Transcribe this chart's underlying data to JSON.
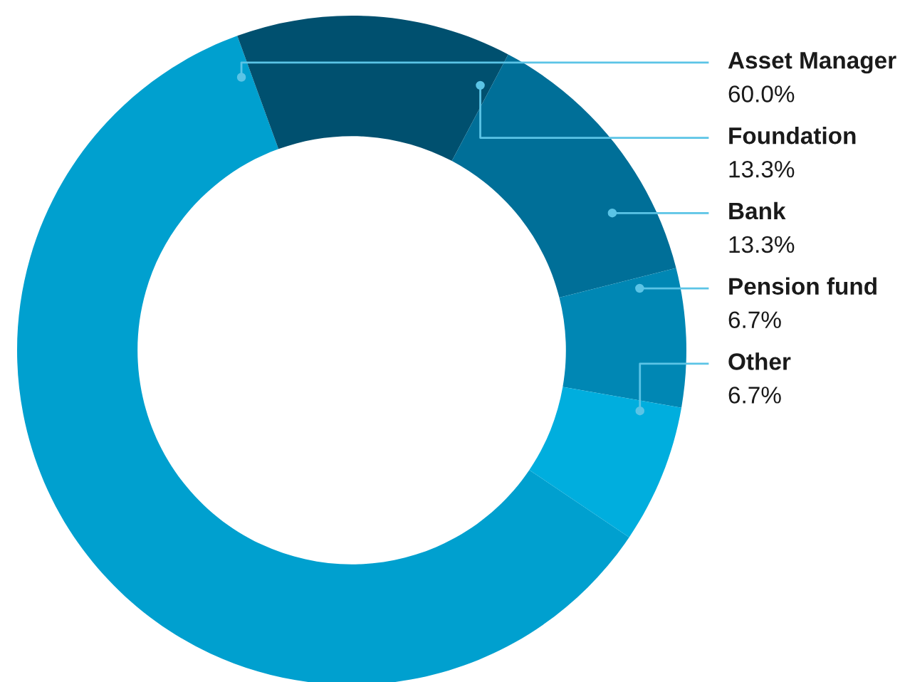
{
  "chart_data": {
    "type": "donut",
    "categories": [
      "Asset Manager",
      "Foundation",
      "Bank",
      "Pension fund",
      "Other"
    ],
    "values": [
      60.0,
      13.3,
      13.3,
      6.7,
      6.7
    ],
    "value_labels": [
      "60.0%",
      "13.3%",
      "13.3%",
      "6.7%",
      "6.7%"
    ],
    "colors": [
      "#00a0cf",
      "#00506f",
      "#006f98",
      "#0087b4",
      "#00aede"
    ],
    "legend": false
  }
}
